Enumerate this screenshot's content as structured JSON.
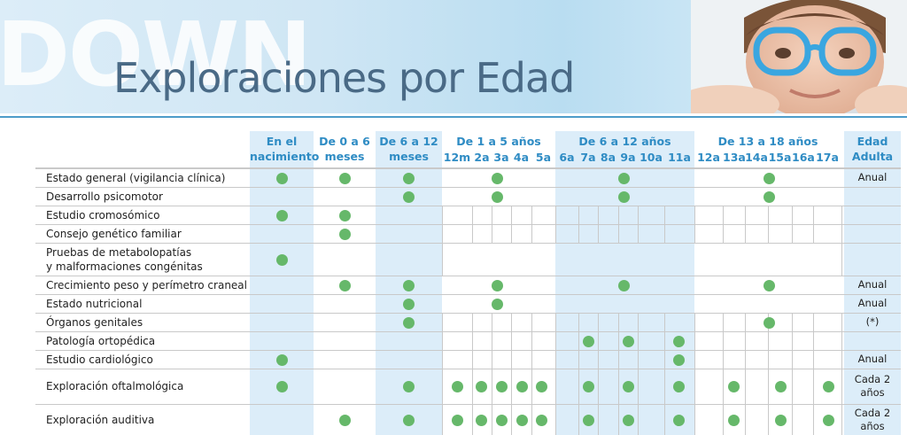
{
  "banner": {
    "watermark": "DOWN",
    "title": "Exploraciones por Edad"
  },
  "headers": {
    "nacimiento": "En el\nnacimiento",
    "m0_6": "De 0 a 6\nmeses",
    "m6_12": "De 6 a 12\nmeses",
    "a1_5": "De 1 a 5 años",
    "a6_12": "De 6 a 12 años",
    "a13_18": "De 13 a 18 años",
    "adulta": "Edad\nAdulta"
  },
  "subheaders": [
    "12m",
    "2a",
    "3a",
    "4a",
    "5a",
    "6a",
    "7a",
    "8a",
    "9a",
    "10a",
    "11a",
    "12a",
    "13a",
    "14a",
    "15a",
    "16a",
    "17a"
  ],
  "rows": [
    {
      "label": "Estado general (vigilancia clínica)",
      "adult": "Anual"
    },
    {
      "label": "Desarrollo psicomotor",
      "adult": ""
    },
    {
      "label": "Estudio cromosómico",
      "adult": ""
    },
    {
      "label": "Consejo genético familiar",
      "adult": ""
    },
    {
      "label": "Pruebas de metabolopatías\ny malformaciones congénitas",
      "adult": ""
    },
    {
      "label": "Crecimiento peso y perímetro craneal",
      "adult": "Anual"
    },
    {
      "label": "Estado nutricional",
      "adult": "Anual"
    },
    {
      "label": "Órganos genitales",
      "adult": "(*)"
    },
    {
      "label": "Patología ortopédica",
      "adult": ""
    },
    {
      "label": "Estudio cardiológico",
      "adult": "Anual"
    },
    {
      "label": "Exploración oftalmológica",
      "adult": "Cada 2\naños"
    },
    {
      "label": "Exploración auditiva",
      "adult": "Cada 2\naños"
    }
  ],
  "marks": [
    [
      "nac",
      "m06",
      "m612",
      "span15",
      "span612",
      "span1318"
    ],
    [
      "m612",
      "span15",
      "span612",
      "span1318"
    ],
    [
      "nac",
      "m06"
    ],
    [
      "m06"
    ],
    [
      "nac"
    ],
    [
      "m06",
      "m612",
      "span15",
      "span612",
      "span1318"
    ],
    [
      "m612",
      "span15"
    ],
    [
      "m612",
      "span1318"
    ],
    [
      "7a",
      "9a",
      "11a"
    ],
    [
      "nac",
      "11a"
    ],
    [
      "nac",
      "m612",
      "12m",
      "2a",
      "3a",
      "4a",
      "5a",
      "7a",
      "9a",
      "11a",
      "13a",
      "15a",
      "17a"
    ],
    [
      "m06",
      "m612",
      "12m",
      "2a",
      "3a",
      "4a",
      "5a",
      "7a",
      "9a",
      "11a",
      "13a",
      "15a",
      "17a"
    ]
  ],
  "colors": {
    "accent": "#2f8cc4",
    "band": "#dcedf9",
    "dot": "#66b86a",
    "title": "#4a6a86"
  }
}
